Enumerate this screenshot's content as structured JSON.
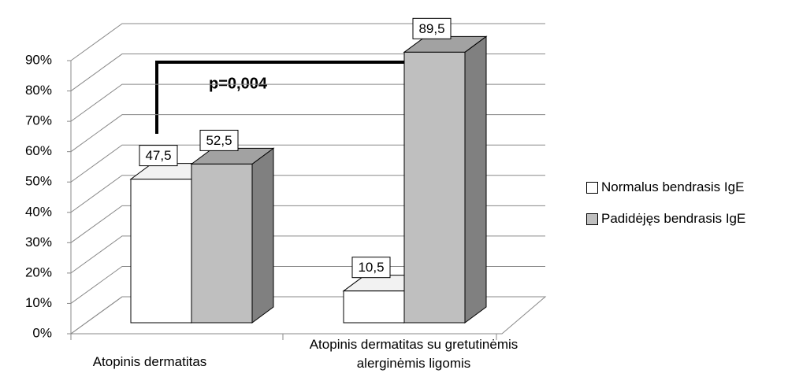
{
  "chart_data": {
    "type": "bar3d",
    "annotation": "p=0,004",
    "categories": [
      "Atopinis dermatitas",
      "Atopinis dermatitas su gretutinėmis alerginėmis ligomis"
    ],
    "series": [
      {
        "name": "Normalus bendrasis IgE",
        "color": "#ffffff",
        "values": [
          47.5,
          10.5
        ],
        "value_labels": [
          "47,5",
          "10,5"
        ]
      },
      {
        "name": "Padidėjęs bendrasis IgE",
        "color": "#bfbfbf",
        "values": [
          52.5,
          89.5
        ],
        "value_labels": [
          "52,5",
          "89,5"
        ]
      }
    ],
    "ylim": [
      0,
      90
    ],
    "yticks": [
      {
        "value": 0,
        "label": "0%"
      },
      {
        "value": 10,
        "label": "10%"
      },
      {
        "value": 20,
        "label": "20%"
      },
      {
        "value": 30,
        "label": "30%"
      },
      {
        "value": 40,
        "label": "40%"
      },
      {
        "value": 50,
        "label": "50%"
      },
      {
        "value": 60,
        "label": "60%"
      },
      {
        "value": 70,
        "label": "70%"
      },
      {
        "value": 80,
        "label": "80%"
      },
      {
        "value": 90,
        "label": "90%"
      }
    ],
    "grid": true
  }
}
